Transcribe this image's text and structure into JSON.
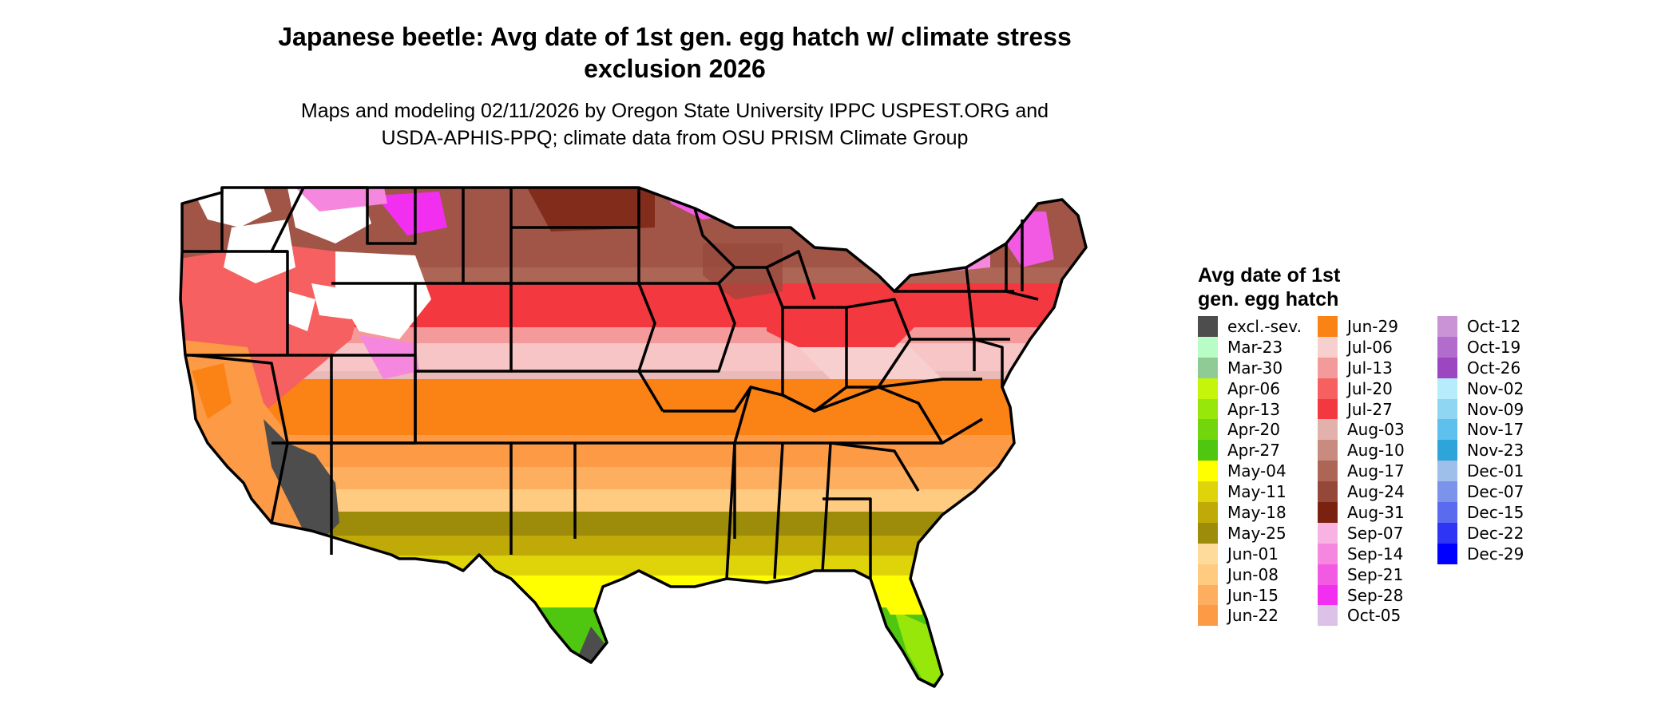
{
  "title_line1": "Japanese beetle: Avg date of 1st gen. egg hatch w/ climate stress",
  "title_line2": "exclusion 2026",
  "subtitle_line1": "Maps and modeling 02/11/2026 by Oregon State University IPPC USPEST.ORG and",
  "subtitle_line2": "USDA-APHIS-PPQ; climate data from OSU PRISM Climate Group",
  "legend": {
    "title_line1": "Avg date of 1st",
    "title_line2": "gen. egg hatch",
    "columns": [
      [
        {
          "label": "excl.-sev.",
          "color": "#4d4d4d"
        },
        {
          "label": "Mar-23",
          "color": "#b8fcc6"
        },
        {
          "label": "Mar-30",
          "color": "#8fcc95"
        },
        {
          "label": "Apr-06",
          "color": "#c4f50a"
        },
        {
          "label": "Apr-13",
          "color": "#97e80a"
        },
        {
          "label": "Apr-20",
          "color": "#72d60c"
        },
        {
          "label": "Apr-27",
          "color": "#4fc710"
        },
        {
          "label": "May-04",
          "color": "#ffff00"
        },
        {
          "label": "May-11",
          "color": "#dfd40a"
        },
        {
          "label": "May-18",
          "color": "#bfaa08"
        },
        {
          "label": "May-25",
          "color": "#9c8c0a"
        },
        {
          "label": "Jun-01",
          "color": "#fedb9b"
        },
        {
          "label": "Jun-08",
          "color": "#fecb80"
        },
        {
          "label": "Jun-15",
          "color": "#fdae5e"
        },
        {
          "label": "Jun-22",
          "color": "#fd9a45"
        }
      ],
      [
        {
          "label": "Jun-29",
          "color": "#fb8214"
        },
        {
          "label": "Jul-06",
          "color": "#f7cfcf"
        },
        {
          "label": "Jul-13",
          "color": "#f59a9a"
        },
        {
          "label": "Jul-20",
          "color": "#f66060"
        },
        {
          "label": "Jul-27",
          "color": "#f4383f"
        },
        {
          "label": "Aug-03",
          "color": "#e3b1ac"
        },
        {
          "label": "Aug-10",
          "color": "#c98a80"
        },
        {
          "label": "Aug-17",
          "color": "#ad6656"
        },
        {
          "label": "Aug-24",
          "color": "#95473a"
        },
        {
          "label": "Aug-31",
          "color": "#7a2210"
        },
        {
          "label": "Sep-07",
          "color": "#f9b3e2"
        },
        {
          "label": "Sep-14",
          "color": "#f687de"
        },
        {
          "label": "Sep-21",
          "color": "#f25ae3"
        },
        {
          "label": "Sep-28",
          "color": "#f22ef0"
        },
        {
          "label": "Oct-05",
          "color": "#dcc2e6"
        }
      ],
      [
        {
          "label": "Oct-12",
          "color": "#c993d6"
        },
        {
          "label": "Oct-19",
          "color": "#b26ccb"
        },
        {
          "label": "Oct-26",
          "color": "#9c46c2"
        },
        {
          "label": "Nov-02",
          "color": "#b6ecfb"
        },
        {
          "label": "Nov-09",
          "color": "#8ed6f1"
        },
        {
          "label": "Nov-17",
          "color": "#5ec0ed"
        },
        {
          "label": "Nov-23",
          "color": "#2ea5d9"
        },
        {
          "label": "Dec-01",
          "color": "#9dbfea"
        },
        {
          "label": "Dec-07",
          "color": "#7b93ea"
        },
        {
          "label": "Dec-15",
          "color": "#5a6bef"
        },
        {
          "label": "Dec-22",
          "color": "#2e35f5"
        },
        {
          "label": "Dec-29",
          "color": "#0000ff"
        }
      ]
    ]
  },
  "map_colors": {
    "excluded": "#4d4d4d",
    "no_data": "#ffffff",
    "border": "#000000"
  }
}
